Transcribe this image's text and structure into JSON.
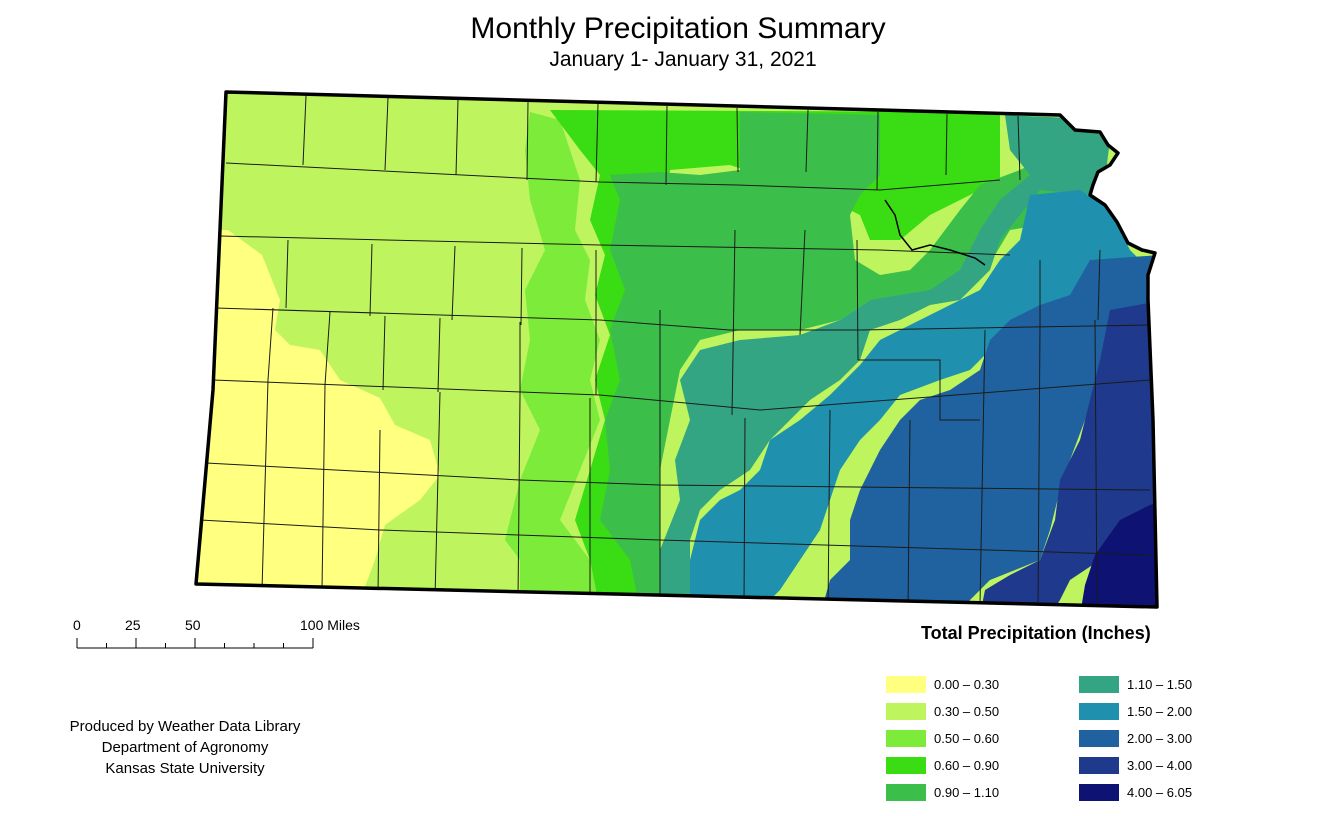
{
  "title": "Monthly Precipitation Summary",
  "subtitle": "January 1- January 31, 2021",
  "scale_bar": {
    "labels": [
      "0",
      "25",
      "50",
      "100 Miles"
    ],
    "miles": [
      0,
      25,
      50,
      100
    ]
  },
  "legend": {
    "title": "Total Precipitation (Inches)",
    "classes": [
      {
        "label": "0.00 – 0.30",
        "color": "#FFFF80"
      },
      {
        "label": "0.30 – 0.50",
        "color": "#BEF55F"
      },
      {
        "label": "0.50 – 0.60",
        "color": "#7DEB3A"
      },
      {
        "label": "0.60 – 0.90",
        "color": "#3ADC14"
      },
      {
        "label": "0.90 – 1.10",
        "color": "#3CBE4B"
      },
      {
        "label": "1.10 – 1.50",
        "color": "#34A582"
      },
      {
        "label": "1.50 – 2.00",
        "color": "#2090AF"
      },
      {
        "label": "2.00 – 3.00",
        "color": "#2062A0"
      },
      {
        "label": "3.00 – 4.00",
        "color": "#1F3A8C"
      },
      {
        "label": "4.00 – 6.05",
        "color": "#0D1273"
      }
    ]
  },
  "credits": [
    "Produced by Weather Data Library",
    "Department of Agronomy",
    "Kansas State University"
  ]
}
